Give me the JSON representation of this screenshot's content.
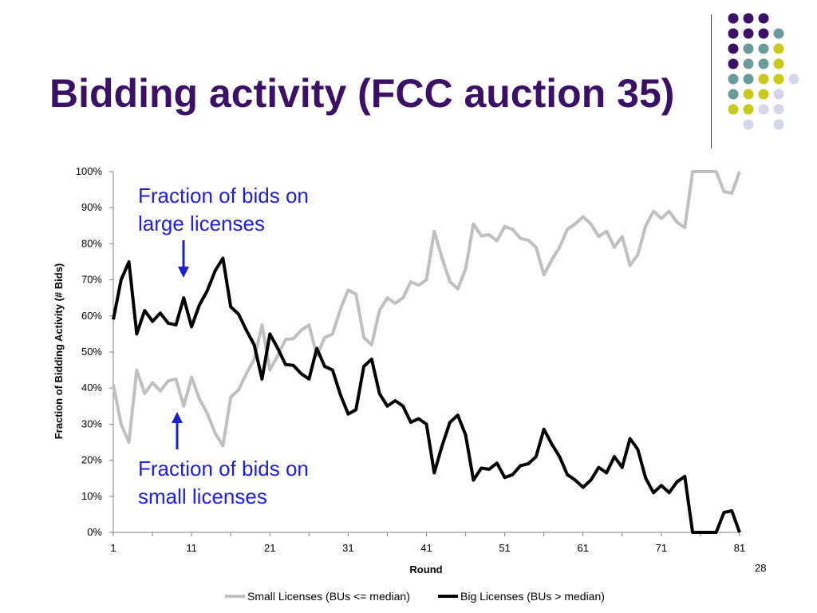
{
  "slide": {
    "title": "Bidding activity (FCC auction 35)",
    "page_number": "28"
  },
  "annotations": {
    "large": [
      "Fraction of bids on",
      "large licenses"
    ],
    "small": [
      "Fraction of bids on",
      "small licenses"
    ]
  },
  "colors": {
    "title": "#3b1166",
    "annotation": "#1f1fd6",
    "small_series": "#c0c0c0",
    "big_series": "#000000",
    "dot_purple": "#3b1166",
    "dot_teal": "#6a9a9a",
    "dot_yellow": "#c8c81e",
    "dot_lavender": "#d6d6ea"
  },
  "decoration": {
    "dot_grid": [
      [
        "purple",
        "purple",
        "purple",
        "none"
      ],
      [
        "purple",
        "purple",
        "purple",
        "teal"
      ],
      [
        "purple",
        "teal",
        "teal",
        "yellow"
      ],
      [
        "purple",
        "teal",
        "teal",
        "yellow"
      ],
      [
        "teal",
        "teal",
        "yellow",
        "yellow",
        "lavender"
      ],
      [
        "teal",
        "yellow",
        "yellow",
        "lavender"
      ],
      [
        "yellow",
        "yellow",
        "lavender",
        "lavender"
      ],
      [
        "none",
        "lavender",
        "none",
        "lavender"
      ]
    ]
  },
  "chart_data": {
    "type": "line",
    "xlabel": "Round",
    "ylabel": "Fraction of Bidding Activity (# Bids)",
    "xlim": [
      1,
      81
    ],
    "ylim": [
      0,
      100
    ],
    "x_ticks": [
      1,
      11,
      21,
      31,
      41,
      51,
      61,
      71,
      81
    ],
    "y_ticks": [
      "0%",
      "10%",
      "20%",
      "30%",
      "40%",
      "50%",
      "60%",
      "70%",
      "80%",
      "90%",
      "100%"
    ],
    "y_tick_values": [
      0,
      10,
      20,
      30,
      40,
      50,
      60,
      70,
      80,
      90,
      100
    ],
    "legend_position": "bottom",
    "x": [
      1,
      2,
      3,
      4,
      5,
      6,
      7,
      8,
      9,
      10,
      11,
      12,
      13,
      14,
      15,
      16,
      17,
      18,
      19,
      20,
      21,
      22,
      23,
      24,
      25,
      26,
      27,
      28,
      29,
      30,
      31,
      32,
      33,
      34,
      35,
      36,
      37,
      38,
      39,
      40,
      41,
      42,
      43,
      44,
      45,
      46,
      47,
      48,
      49,
      50,
      51,
      52,
      53,
      54,
      55,
      56,
      57,
      58,
      59,
      60,
      61,
      62,
      63,
      64,
      65,
      66,
      67,
      68,
      69,
      70,
      71,
      72,
      73,
      74,
      75,
      76,
      77,
      78,
      79,
      80,
      81
    ],
    "series": [
      {
        "name": "Small Licenses (BUs <= median)",
        "color": "#c0c0c0",
        "values": [
          41,
          30,
          25,
          45,
          38.5,
          41.5,
          39.2,
          42,
          42.5,
          35,
          43,
          37,
          33,
          27.5,
          24,
          37.5,
          39.5,
          44,
          48,
          57.5,
          45,
          49,
          53.5,
          53.7,
          56,
          57.5,
          49,
          54,
          55,
          61.8,
          67.2,
          66,
          54,
          52,
          61.5,
          65,
          63.5,
          65,
          69.5,
          68.5,
          70,
          83.5,
          76,
          69.5,
          67.5,
          73,
          85.5,
          82.2,
          82.5,
          80.8,
          84.8,
          84,
          81.5,
          81,
          79,
          71.4,
          75.5,
          79,
          84,
          85.5,
          87.5,
          85.5,
          82,
          83.5,
          79,
          82,
          74,
          77,
          85,
          89,
          87,
          89,
          86,
          84.5,
          100,
          100,
          100,
          100,
          94.5,
          94,
          100
        ]
      },
      {
        "name": "Big Licenses (BUs > median)",
        "color": "#000000",
        "values": [
          59,
          70,
          75,
          55,
          61.5,
          58.5,
          60.8,
          58,
          57.5,
          65,
          57,
          63,
          67,
          72.5,
          76,
          62.5,
          60.5,
          56,
          52,
          42.5,
          55,
          51,
          46.5,
          46.3,
          44,
          42.5,
          51,
          46,
          45,
          38.2,
          32.8,
          34,
          46,
          48,
          38.5,
          35,
          36.5,
          35,
          30.5,
          31.5,
          30,
          16.5,
          24,
          30.5,
          32.5,
          27,
          14.5,
          17.8,
          17.5,
          19.2,
          15.2,
          16,
          18.5,
          19,
          21,
          28.6,
          24.5,
          21,
          16,
          14.5,
          12.5,
          14.5,
          18,
          16.5,
          21,
          18,
          26,
          23,
          15,
          11,
          13,
          11,
          14,
          15.5,
          0,
          0,
          0,
          0,
          5.5,
          6,
          0
        ]
      }
    ]
  }
}
